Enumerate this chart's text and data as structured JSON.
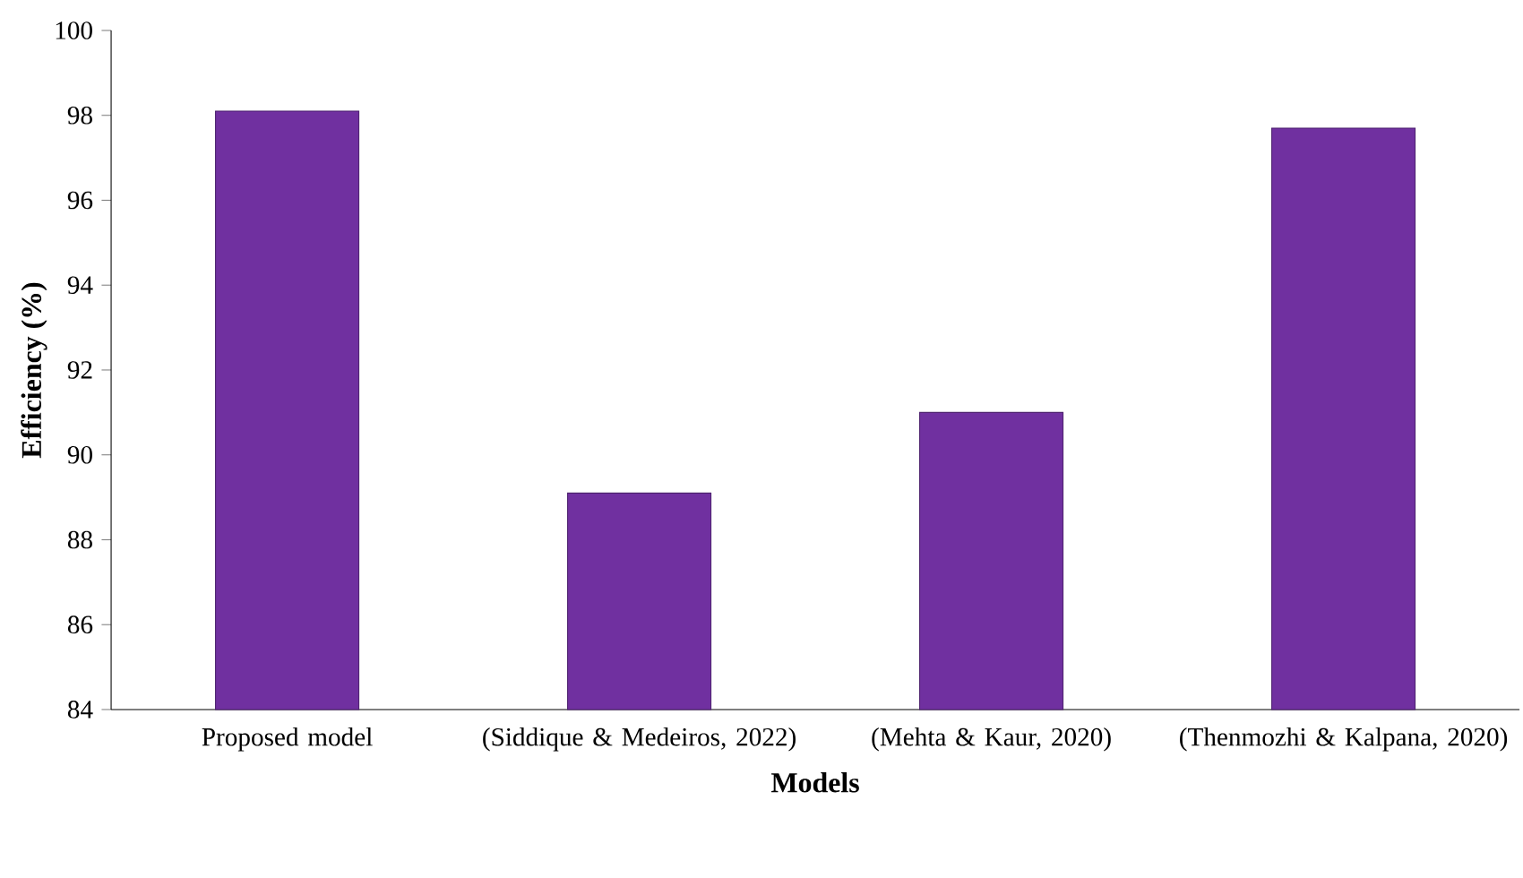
{
  "chart_data": {
    "type": "bar",
    "xlabel": "Models",
    "ylabel": "Efficiency (%)",
    "categories": [
      "Proposed model",
      "(Siddique & Medeiros, 2022)",
      "(Mehta & Kaur, 2020)",
      "(Thenmozhi & Kalpana, 2020)"
    ],
    "values": [
      98.1,
      89.1,
      91.0,
      97.7
    ],
    "color": "#7030a0",
    "ylim": [
      84,
      100
    ],
    "yticks": [
      84,
      86,
      88,
      90,
      92,
      94,
      96,
      98,
      100
    ],
    "grid": false
  }
}
